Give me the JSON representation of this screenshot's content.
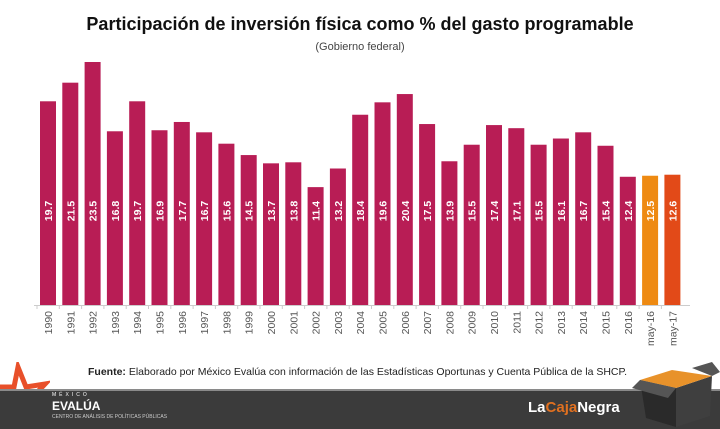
{
  "chart_data": {
    "type": "bar",
    "title": "Participación de inversión física como % del gasto programable",
    "subtitle": "(Gobierno federal)",
    "categories": [
      "1990",
      "1991",
      "1992",
      "1993",
      "1994",
      "1995",
      "1996",
      "1997",
      "1998",
      "1999",
      "2000",
      "2001",
      "2002",
      "2003",
      "2004",
      "2005",
      "2006",
      "2007",
      "2008",
      "2009",
      "2010",
      "2011",
      "2012",
      "2013",
      "2014",
      "2015",
      "2016",
      "may-16",
      "may-17"
    ],
    "values": [
      19.7,
      21.5,
      23.5,
      16.8,
      19.7,
      16.9,
      17.7,
      16.7,
      15.6,
      14.5,
      13.7,
      13.8,
      11.4,
      13.2,
      18.4,
      19.6,
      20.4,
      17.5,
      13.9,
      15.5,
      17.4,
      17.1,
      15.5,
      16.1,
      16.7,
      15.4,
      12.4,
      12.5,
      12.6
    ],
    "colors": {
      "default": "#b81d55",
      "may-16": "#ee8a12",
      "may-17": "#e24a18"
    },
    "ylim": [
      0,
      23.5
    ],
    "grid": false,
    "data_labels": "inside-vertical"
  },
  "source": {
    "label": "Fuente:",
    "text": " Elaborado por México Evalúa con información de las Estadísticas Oportunas y Cuenta Pública de la SHCP."
  },
  "logos": {
    "mexico_evalua": {
      "small": "MÉXICO",
      "big": "EVALÚA",
      "tiny": "CENTRO DE ANÁLISIS DE POLÍTICAS PÚBLICAS"
    },
    "la_caja_negra": {
      "a": "La",
      "b": "Caja",
      "c": "Negra"
    }
  }
}
